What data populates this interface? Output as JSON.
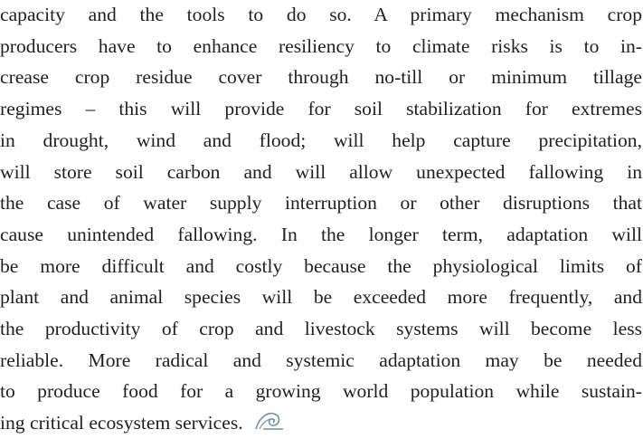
{
  "paragraph": {
    "lines": [
      "capacity and the tools to do so. A primary mechanism crop",
      "producers have to enhance resiliency to climate risks is to in-",
      "crease crop residue cover through no-till or minimum tillage",
      "regimes – this will provide for soil stabilization for extremes",
      "in drought, wind and flood; will help capture precipitation,",
      "will store soil carbon and will allow unexpected fallowing in",
      "the case of water supply interruption or other disruptions that",
      "cause unintended fallowing. In the longer term, adaptation will",
      "be more difficult and costly because the physiological limits of",
      "plant and animal species will be exceeded more frequently, and",
      "the productivity of crop and livestock systems will become less",
      "reliable. More radical and systemic adaptation may be needed",
      "to produce food for a growing world population while sustain-",
      "ing critical ecosystem services."
    ]
  }
}
